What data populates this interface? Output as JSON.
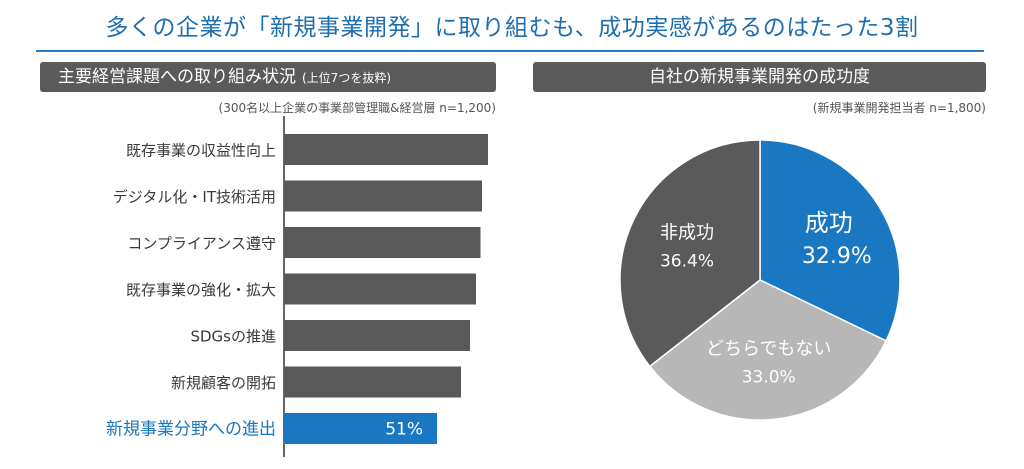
{
  "title": "多くの企業が「新規事業開発」に取り組むも、成功実感があるのはたった3割",
  "colors": {
    "title": "#1e6fb0",
    "accent": "#1a77c2",
    "bar": "#595959",
    "pie_success": "#1a77c2",
    "pie_neutral": "#b7b7b7",
    "pie_failure": "#5a5a5a"
  },
  "left_panel": {
    "header": "主要経営課題への取り組み状況",
    "header_sub": "(上位7つを抜粋)",
    "note": "(300名以上企業の事業部管理職&経営層 n=1,200)"
  },
  "right_panel": {
    "header": "自社の新規事業開発の成功度",
    "note": "(新規事業開発担当者 n=1,800)"
  },
  "chart_data": [
    {
      "type": "bar",
      "orientation": "horizontal",
      "categories": [
        "既存事業の収益性向上",
        "デジタル化・IT技術活用",
        "コンプライアンス遵守",
        "既存事業の強化・拡大",
        "SDGsの推進",
        "新規顧客の開拓",
        "新規事業分野への進出"
      ],
      "values": [
        68,
        66,
        65.5,
        64,
        62,
        59,
        51
      ],
      "highlight": {
        "index": 6,
        "label": "51%"
      },
      "xlim": [
        0,
        70
      ]
    },
    {
      "type": "pie",
      "slices": [
        {
          "label": "成功",
          "value": 32.9,
          "value_label": "32.9%"
        },
        {
          "label": "どちらでもない",
          "value": 33.0,
          "value_label": "33.0%"
        },
        {
          "label": "非成功",
          "value": 36.4,
          "value_label": "36.4%"
        }
      ]
    }
  ]
}
